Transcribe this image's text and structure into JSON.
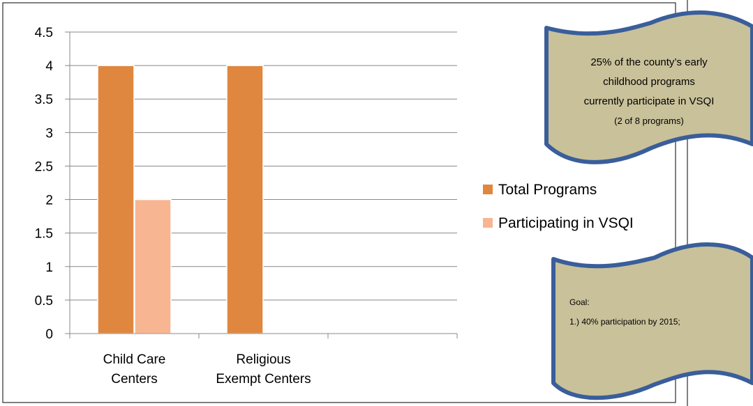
{
  "chart_data": {
    "type": "bar",
    "categories": [
      [
        "Child Care",
        "Centers"
      ],
      [
        "Religious",
        "Exempt Centers"
      ],
      [
        ""
      ]
    ],
    "series": [
      {
        "name": "Total Programs",
        "values": [
          4,
          4,
          null
        ],
        "color": "#e0873f"
      },
      {
        "name": "Participating in VSQI",
        "values": [
          2,
          null,
          null
        ],
        "color": "#f8b592"
      }
    ],
    "title": "",
    "xlabel": "",
    "ylabel": "",
    "ylim": [
      0,
      4.5
    ],
    "yticks": [
      "0",
      "0.5",
      "1",
      "1.5",
      "2",
      "2.5",
      "3",
      "3.5",
      "4",
      "4.5"
    ],
    "grid": true,
    "legend": "right"
  },
  "callouts": [
    {
      "lines": [
        "25% of the county’s early",
        "childhood programs",
        "currently participate in VSQI"
      ],
      "note": "(2 of 8 programs)"
    },
    {
      "lines": [
        "Goal:",
        "1.) 40% participation by 2015;"
      ]
    }
  ],
  "colors": {
    "banner_fill": "#c9c19a",
    "banner_border": "#3a5e9a",
    "gridline": "#888888"
  }
}
